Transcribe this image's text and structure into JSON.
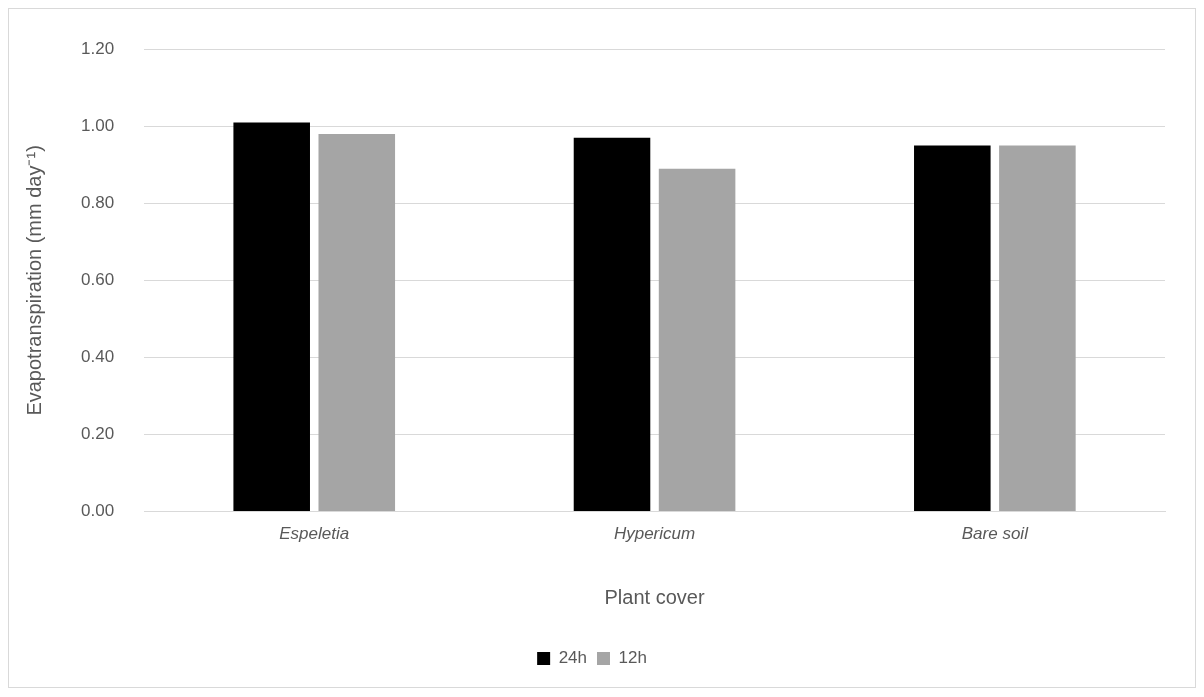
{
  "chart_data": {
    "type": "bar",
    "xlabel": "Plant cover",
    "ylabel": "Evapotranspiration (mm day⁻¹)",
    "categories": [
      "Espeletia",
      "Hypericum",
      "Bare soil"
    ],
    "series": [
      {
        "name": "24h",
        "color": "#000000",
        "values": [
          1.01,
          0.97,
          0.95
        ]
      },
      {
        "name": "12h",
        "color": "#a5a5a5",
        "values": [
          0.98,
          0.89,
          0.95
        ]
      }
    ],
    "ylim": [
      0,
      1.2
    ],
    "yticks": [
      {
        "value": 0,
        "label": "0.00"
      },
      {
        "value": 0.2,
        "label": "0.20"
      },
      {
        "value": 0.4,
        "label": "0.40"
      },
      {
        "value": 0.6,
        "label": "0.60"
      },
      {
        "value": 0.8,
        "label": "0.80"
      },
      {
        "value": 1.0,
        "label": "1.00"
      },
      {
        "value": 1.2,
        "label": "1.20"
      }
    ],
    "grid": "y",
    "legend": "bottom"
  }
}
